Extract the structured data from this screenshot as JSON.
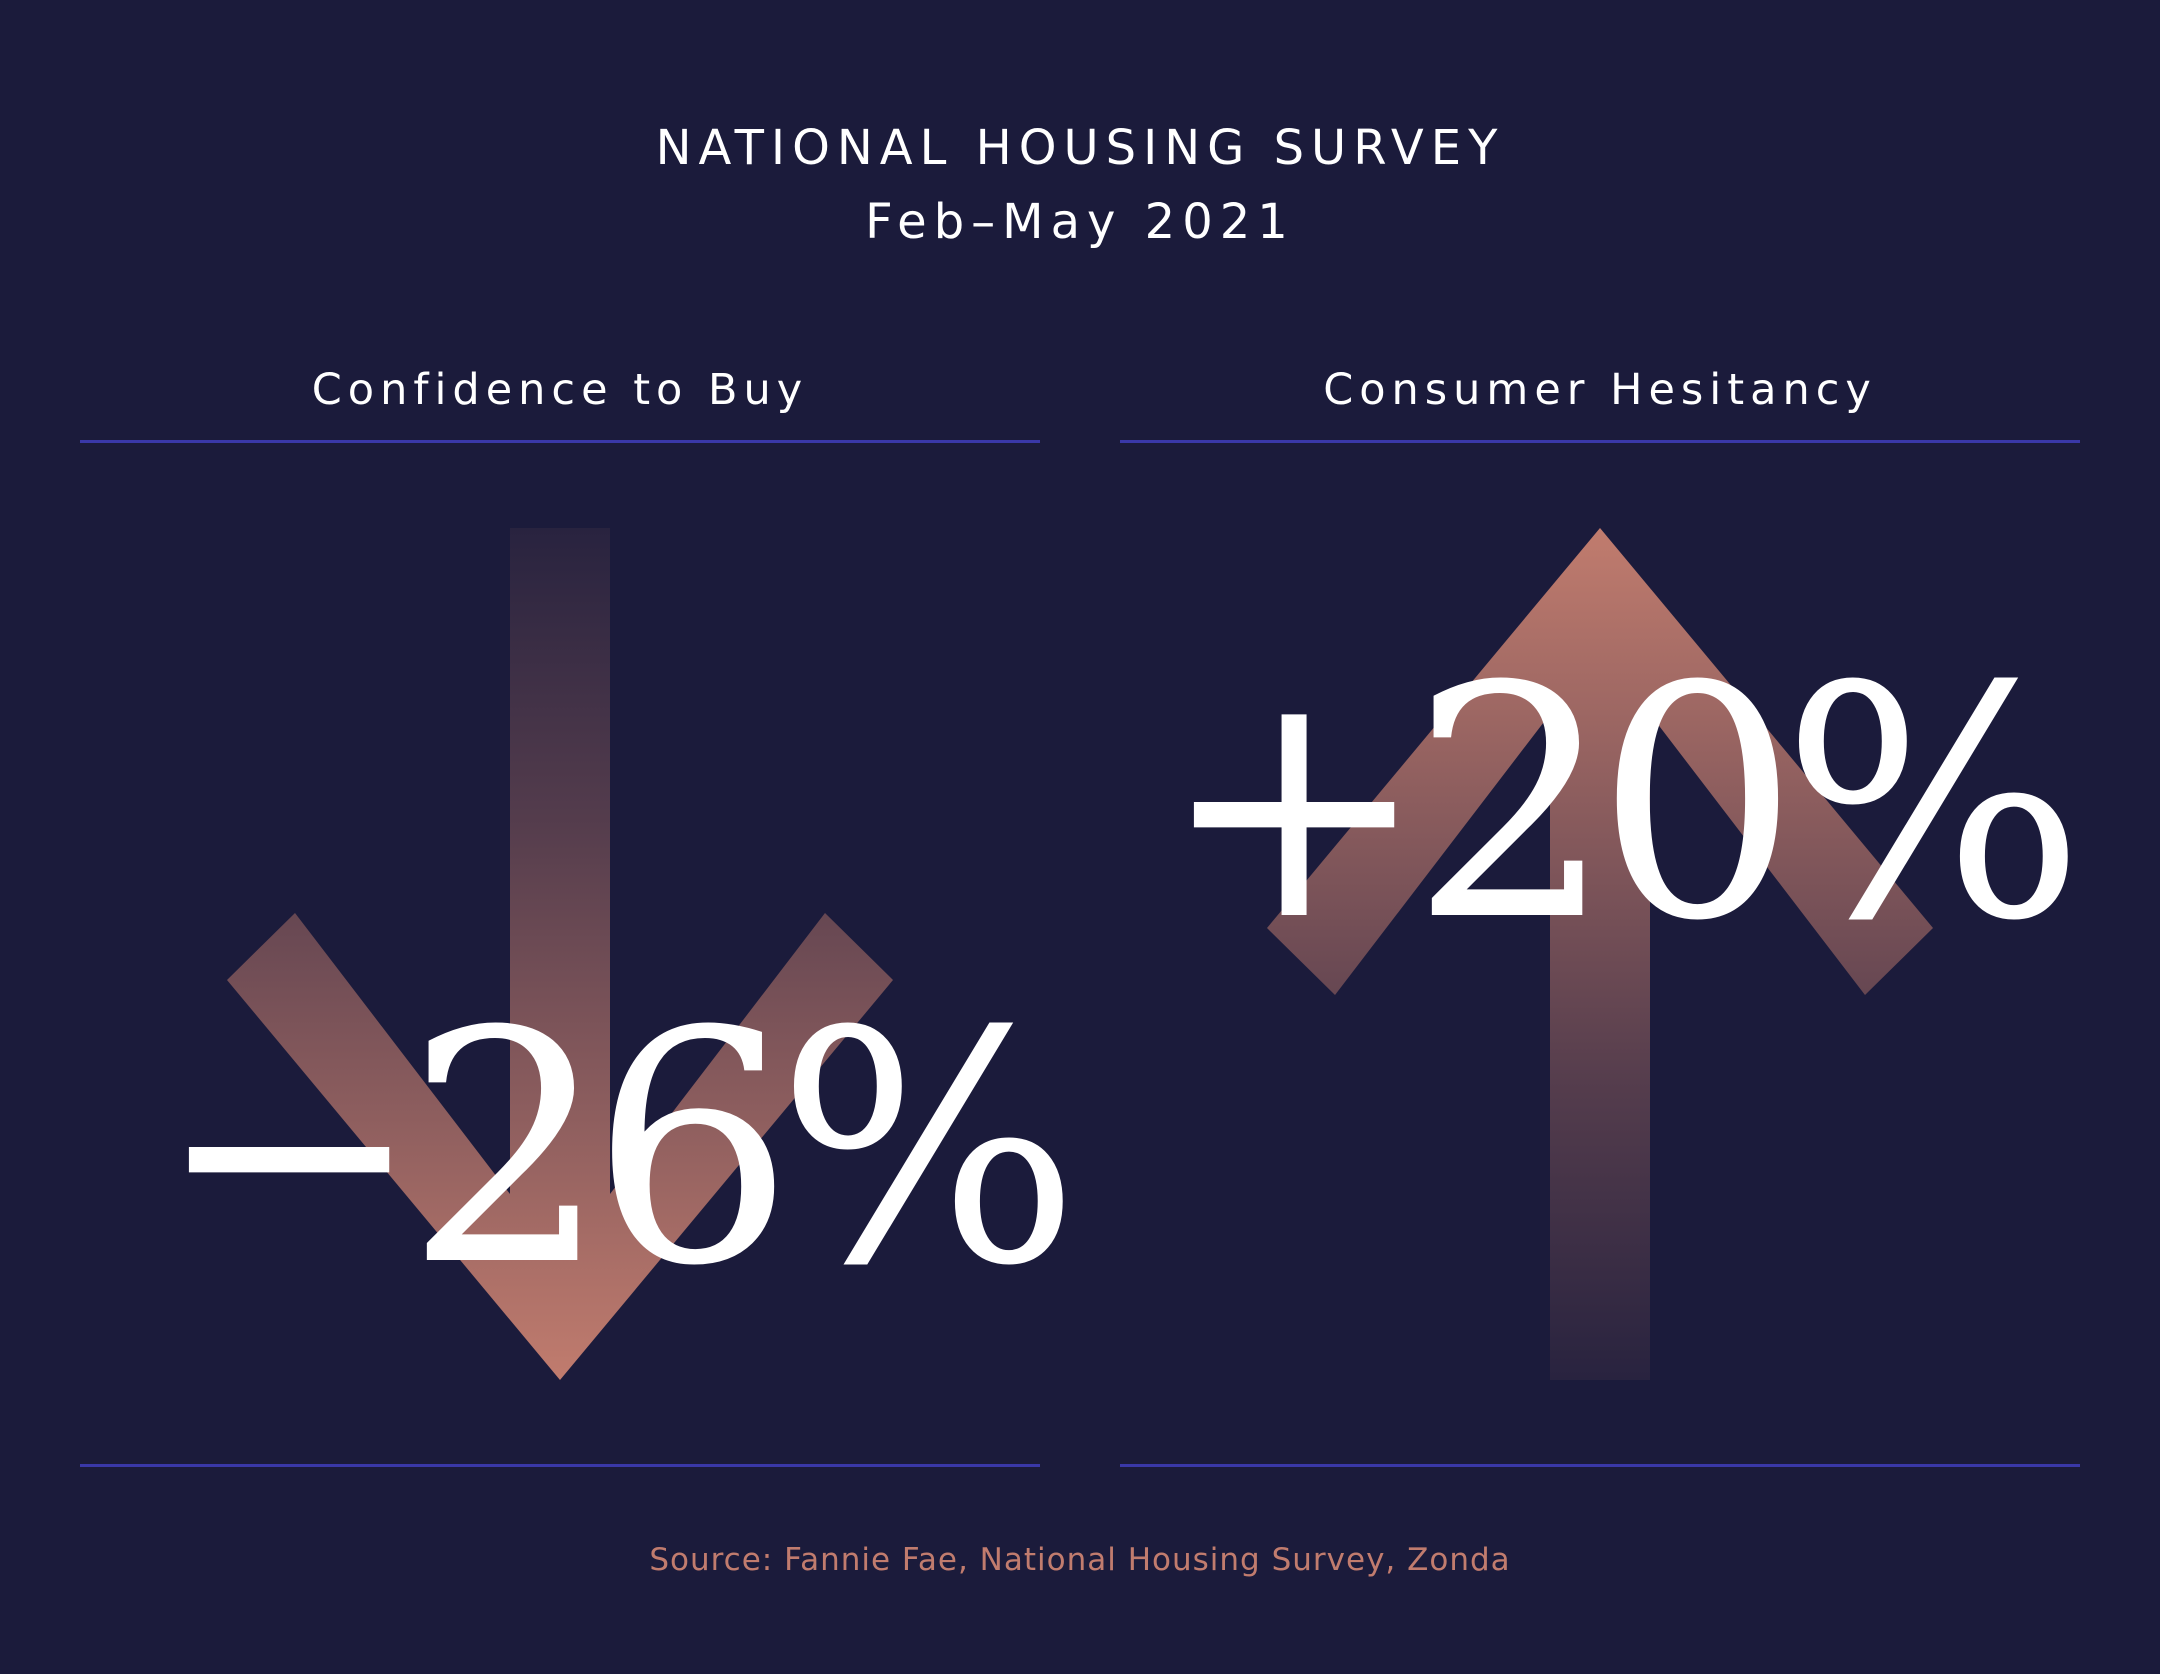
{
  "header": {
    "title": "NATIONAL HOUSING SURVEY",
    "subtitle": "Feb–May 2021"
  },
  "panels": [
    {
      "label": "Confidence to Buy",
      "value": "−26%",
      "direction": "down",
      "arrow_icon": "arrow-down-icon"
    },
    {
      "label": "Consumer Hesitancy",
      "value": "+20%",
      "direction": "up",
      "arrow_icon": "arrow-up-icon"
    }
  ],
  "footer": {
    "source": "Source: Fannie Fae, National Housing Survey, Zonda"
  },
  "colors": {
    "background": "#1b1b3b",
    "text": "#ffffff",
    "rule": "#3a38a8",
    "accent": "#c17c6e",
    "source_text": "#c17c6e"
  }
}
